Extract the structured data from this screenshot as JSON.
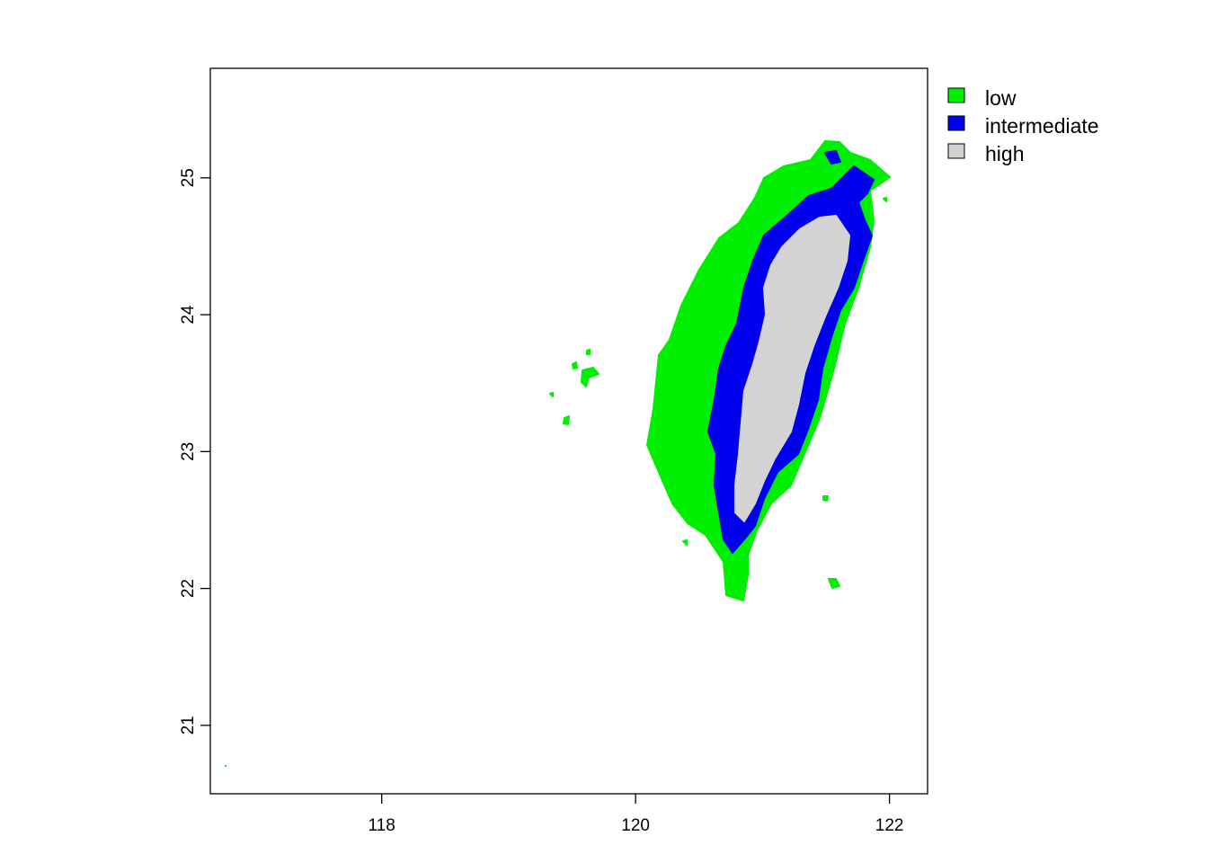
{
  "map": {
    "xlim": [
      116.65,
      122.3
    ],
    "ylim": [
      20.5,
      25.8
    ],
    "x_ticks": [
      118,
      120,
      122
    ],
    "y_ticks": [
      21,
      22,
      23,
      24,
      25
    ],
    "x_tick_labels": [
      "118",
      "120",
      "122"
    ],
    "y_tick_labels": [
      "21",
      "22",
      "23",
      "24",
      "25"
    ]
  },
  "legend": {
    "placement": "outside-top-right",
    "items": [
      {
        "label": "low",
        "color": "#00ee00"
      },
      {
        "label": "intermediate",
        "color": "#0000ee"
      },
      {
        "label": "high",
        "color": "#d3d3d3"
      }
    ]
  }
}
